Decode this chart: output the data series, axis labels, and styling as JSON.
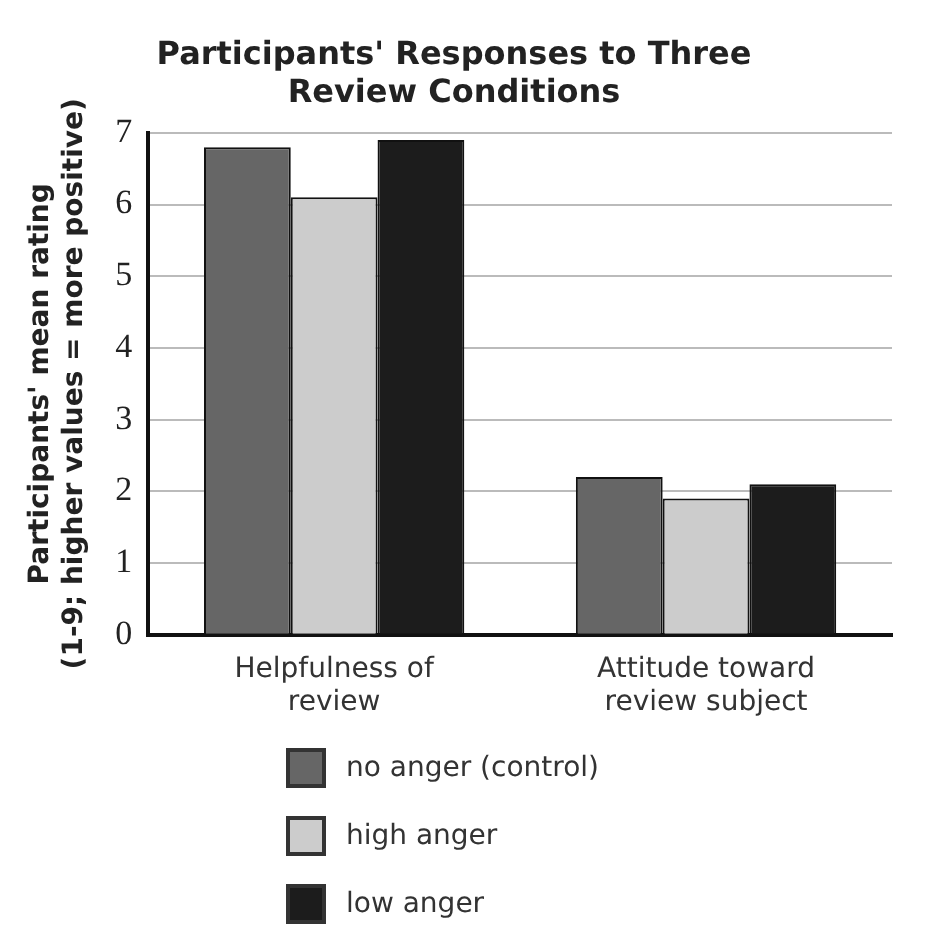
{
  "chart_data": {
    "type": "bar",
    "title": "Participants' Responses to Three Review Conditions",
    "ylabel": "Participants' mean rating (1-9; higher values = more positive)",
    "categories": [
      "Helpfulness of review",
      "Attitude toward review subject"
    ],
    "series": [
      {
        "name": "no anger (control)",
        "color": "#666666",
        "values": [
          6.8,
          2.2
        ]
      },
      {
        "name": "high anger",
        "color": "#cccccc",
        "values": [
          6.1,
          1.9
        ]
      },
      {
        "name": "low anger",
        "color": "#1c1c1c",
        "values": [
          6.9,
          2.1
        ]
      }
    ],
    "ylim": [
      0,
      7
    ],
    "yticks": [
      0,
      1,
      2,
      3,
      4,
      5,
      6,
      7
    ],
    "grid": "y",
    "legend": "bottom"
  }
}
